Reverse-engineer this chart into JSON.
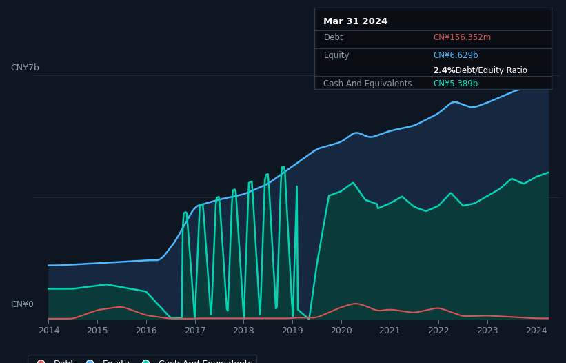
{
  "bg_color": "#0e1621",
  "plot_bg_color": "#0e1621",
  "grid_color": "#1c2a3a",
  "title_box": {
    "date": "Mar 31 2024",
    "debt_label": "Debt",
    "debt_value": "CN¥156.352m",
    "debt_color": "#e05252",
    "equity_label": "Equity",
    "equity_value": "CN¥6.629b",
    "equity_color": "#4db8ff",
    "ratio_text": "2.4% Debt/Equity Ratio",
    "ratio_bold": "2.4%",
    "cash_label": "Cash And Equivalents",
    "cash_value": "CN¥5.389b",
    "cash_color": "#00e5c0"
  },
  "ylabel_top": "CN¥7b",
  "ylabel_bottom": "CN¥0",
  "x_ticks": [
    2014,
    2015,
    2016,
    2017,
    2018,
    2019,
    2020,
    2021,
    2022,
    2023,
    2024
  ],
  "equity_color": "#4db8ff",
  "equity_fill": "#152840",
  "debt_color": "#e05252",
  "cash_color": "#00d4b0",
  "cash_fill": "#0a3a3a",
  "legend_labels": [
    "Debt",
    "Equity",
    "Cash And Equivalents"
  ],
  "ylim": [
    0,
    7.5
  ],
  "xlim": [
    2013.7,
    2024.5
  ]
}
